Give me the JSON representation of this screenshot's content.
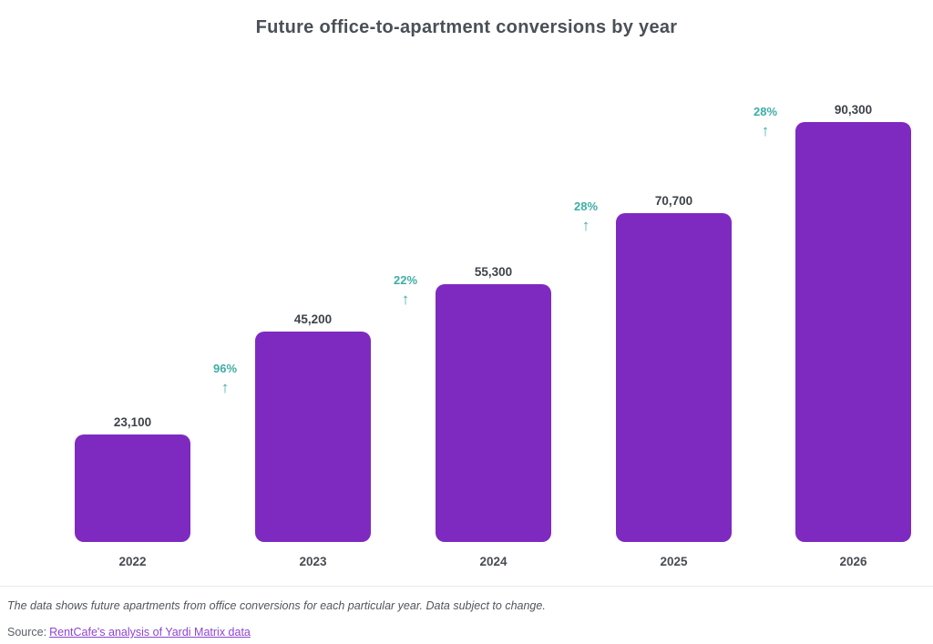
{
  "title": "Future office-to-apartment conversions by year",
  "chart_data": {
    "type": "bar",
    "title": "Future office-to-apartment conversions by year",
    "categories": [
      "2022",
      "2023",
      "2024",
      "2025",
      "2026"
    ],
    "values": [
      23100,
      45200,
      55300,
      70700,
      90300
    ],
    "value_labels": [
      "23,100",
      "45,200",
      "55,300",
      "70,700",
      "90,300"
    ],
    "annotations": [
      {
        "between": "2022-2023",
        "label": "96%",
        "arrow": "↑"
      },
      {
        "between": "2023-2024",
        "label": "22%",
        "arrow": "↑"
      },
      {
        "between": "2024-2025",
        "label": "28%",
        "arrow": "↑"
      },
      {
        "between": "2025-2026",
        "label": "28%",
        "arrow": "↑"
      }
    ],
    "bar_color": "#7E2AC0",
    "annotation_color": "#3FADA5",
    "xlabel": "",
    "ylabel": "",
    "ylim": [
      0,
      95000
    ],
    "grid": false,
    "legend": false
  },
  "footer": {
    "note": "The data shows future apartments from office conversions for each particular year. Data subject to change.",
    "source_prefix": "Source:",
    "source_link_text": "RentCafe's analysis of Yardi Matrix data"
  }
}
